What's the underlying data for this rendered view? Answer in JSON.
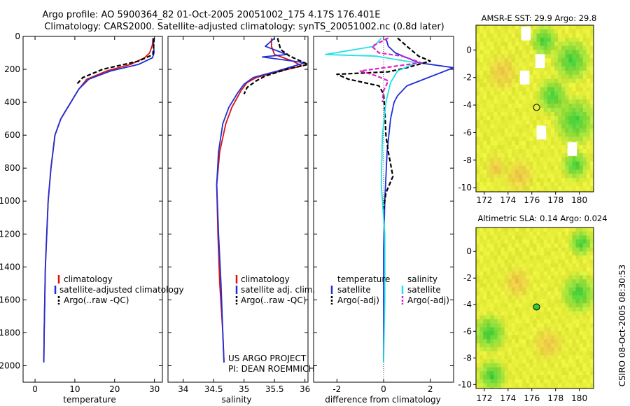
{
  "colors": {
    "climatology": "#dd1111",
    "satellite": "#1f2fd6",
    "argo": "#000000",
    "sat_salinity": "#22e0e8",
    "argo_salinity": "#dd22cc",
    "map_green": "#2ecb3a",
    "map_yellow": "#e6ee3a",
    "map_orange": "#f0c24a"
  },
  "header": {
    "title_line1": "Argo profile: AO 5900364_82 01-Oct-2005 20051002_175 4.17S 176.401E",
    "title_line2": "Climatology: CARS2000. Satellite-adjusted climatology: synTS_20051002.nc (0.8d later)"
  },
  "side_label": "CSIRO 08-Oct-2005 08:30:53",
  "credit": {
    "line1": "US ARGO PROJECT",
    "line2": "PI: DEAN ROEMMICH"
  },
  "chart_data": [
    {
      "type": "line",
      "name": "temperature-profile",
      "xlabel": "temperature",
      "ylabel": "",
      "y_reversed": true,
      "xlim": [
        -3,
        32
      ],
      "ylim": [
        0,
        2100
      ],
      "xticks": [
        0,
        10,
        20,
        30
      ],
      "yticks": [
        0,
        200,
        400,
        600,
        800,
        1000,
        1200,
        1400,
        1600,
        1800,
        2000
      ],
      "legend": [
        "climatology",
        "satellite-adjusted climatology",
        "Argo(..raw -QC)"
      ],
      "series": [
        {
          "name": "climatology",
          "color_key": "climatology",
          "x": [
            29.6,
            29.5,
            28.8,
            27.5,
            24,
            18,
            13,
            11,
            9,
            6.5,
            5,
            4,
            3.3,
            2.6,
            2.3,
            2.2
          ],
          "y": [
            10,
            50,
            100,
            130,
            170,
            210,
            260,
            320,
            400,
            500,
            600,
            800,
            1000,
            1400,
            1800,
            1980
          ]
        },
        {
          "name": "satellite",
          "color_key": "satellite",
          "x": [
            29.7,
            29.8,
            29.9,
            29.5,
            26,
            19,
            13.5,
            11,
            9,
            6.5,
            5,
            4,
            3.3,
            2.6,
            2.3,
            2.2
          ],
          "y": [
            10,
            50,
            100,
            130,
            170,
            210,
            260,
            320,
            400,
            500,
            600,
            800,
            1000,
            1400,
            1800,
            1980
          ]
        },
        {
          "name": "Argo",
          "color_key": "argo",
          "x": [
            29.9,
            29.8,
            29.6,
            26,
            17,
            12,
            10.5
          ],
          "y": [
            10,
            60,
            110,
            150,
            200,
            250,
            290
          ]
        }
      ]
    },
    {
      "type": "line",
      "name": "salinity-profile",
      "xlabel": "salinity",
      "ylabel": "",
      "y_reversed": true,
      "xlim": [
        33.75,
        36.05
      ],
      "ylim": [
        0,
        2100
      ],
      "xticks": [
        34,
        34.5,
        35,
        35.5,
        36
      ],
      "xticklabels": [
        "34",
        "34.5",
        "35",
        "35.5",
        "36"
      ],
      "legend": [
        "climatology",
        "satellite adj. clim.",
        "Argo(..raw -QC)"
      ],
      "series": [
        {
          "name": "climatology",
          "color_key": "climatology",
          "x": [
            35.45,
            35.45,
            35.5,
            35.8,
            35.95,
            35.6,
            35.2,
            35.05,
            34.95,
            34.8,
            34.7,
            34.6,
            34.55,
            34.57,
            34.6,
            34.65,
            34.67
          ],
          "y": [
            10,
            60,
            110,
            150,
            180,
            210,
            250,
            280,
            330,
            430,
            530,
            700,
            900,
            1200,
            1500,
            1800,
            1980
          ]
        },
        {
          "name": "satellite",
          "color_key": "satellite",
          "x": [
            35.5,
            35.35,
            35.7,
            35.3,
            36,
            35.55,
            35.15,
            35.0,
            34.9,
            34.75,
            34.65,
            34.58,
            34.55,
            34.58,
            34.62,
            34.65,
            34.67
          ],
          "y": [
            10,
            60,
            110,
            125,
            160,
            210,
            250,
            290,
            340,
            430,
            530,
            700,
            900,
            1200,
            1500,
            1800,
            1980
          ]
        },
        {
          "name": "Argo",
          "color_key": "argo",
          "x": [
            35.55,
            35.6,
            35.75,
            36.05,
            35.7,
            35.35,
            35.2,
            35.05,
            35.0
          ],
          "y": [
            10,
            80,
            120,
            170,
            200,
            240,
            270,
            310,
            350
          ]
        }
      ]
    },
    {
      "type": "line",
      "name": "difference-profile",
      "xlabel": "difference from climatology",
      "ylabel": "",
      "y_reversed": true,
      "xlim": [
        -3,
        3
      ],
      "ylim": [
        0,
        2100
      ],
      "xticks": [
        -2,
        0,
        2
      ],
      "legend": [
        "temperature",
        "satellite",
        "Argo(-adj)",
        "salinity",
        "satellite",
        "Argo(-adj)"
      ],
      "series": [
        {
          "name": "temperature satellite",
          "color_key": "satellite",
          "x": [
            0.1,
            0.2,
            0.5,
            1.0,
            1.5,
            2.5,
            3.0,
            1.0,
            0.6,
            0.45,
            0.3,
            0.15,
            0.05,
            0.0,
            0.0,
            0.0,
            0.0
          ],
          "y": [
            10,
            60,
            100,
            130,
            160,
            180,
            190,
            300,
            360,
            400,
            500,
            700,
            1000,
            1300,
            1600,
            1800,
            1980
          ]
        },
        {
          "name": "temperature Argo",
          "color_key": "argo",
          "x": [
            0.6,
            1.0,
            1.5,
            2.0,
            1.0,
            0.2,
            -2.0,
            -1.5,
            -0.2,
            0.0,
            0.05,
            0.1,
            0.2,
            0.4,
            0.1,
            0.0
          ],
          "y": [
            10,
            60,
            120,
            150,
            190,
            215,
            230,
            260,
            300,
            350,
            450,
            600,
            700,
            850,
            950,
            1050
          ]
        },
        {
          "name": "salinity satellite",
          "color_key": "sat_salinity",
          "x": [
            -0.1,
            -0.4,
            -2.5,
            -0.3,
            0.5,
            1.4,
            0.6,
            0.3,
            0.1,
            -0.05,
            -0.1,
            0.05,
            0.05,
            0.0
          ],
          "y": [
            10,
            60,
            110,
            120,
            140,
            160,
            210,
            280,
            400,
            600,
            900,
            1200,
            1600,
            1980
          ]
        },
        {
          "name": "salinity Argo",
          "color_key": "argo_salinity",
          "x": [
            0.2,
            -0.5,
            -0.2,
            0.8,
            1.6,
            0.3,
            -1.0,
            -0.3,
            0.2,
            0.0,
            -0.05
          ],
          "y": [
            10,
            60,
            100,
            120,
            160,
            185,
            210,
            240,
            270,
            330,
            400
          ]
        }
      ]
    },
    {
      "type": "heatmap",
      "name": "sst-map",
      "title": "AMSR-E SST: 29.9 Argo: 29.8",
      "xlim": [
        171.3,
        181.2
      ],
      "ylim": [
        -10.3,
        1.8
      ],
      "xticks": [
        172,
        174,
        176,
        178,
        180
      ],
      "yticks": [
        0,
        -2,
        -4,
        -6,
        -8,
        -10
      ],
      "marker": {
        "lon": 176.4,
        "lat": -4.17
      },
      "blobs": [
        {
          "lon": 176.9,
          "lat": 0.8,
          "r": 1.3,
          "color_key": "map_green"
        },
        {
          "lon": 179.2,
          "lat": -0.6,
          "r": 1.8,
          "color_key": "map_green"
        },
        {
          "lon": 179.5,
          "lat": -5.0,
          "r": 2.0,
          "color_key": "map_green"
        },
        {
          "lon": 177.6,
          "lat": -3.2,
          "r": 1.5,
          "color_key": "map_green"
        },
        {
          "lon": 179.5,
          "lat": -8.2,
          "r": 1.3,
          "color_key": "map_green"
        },
        {
          "lon": 173.4,
          "lat": -1.5,
          "r": 1.5,
          "color_key": "map_orange"
        },
        {
          "lon": 174.8,
          "lat": -9.0,
          "r": 1.4,
          "color_key": "map_orange"
        },
        {
          "lon": 172.8,
          "lat": -8.4,
          "r": 1.0,
          "color_key": "map_orange"
        }
      ],
      "land_patches": [
        {
          "lon": 175.5,
          "lat": 1.2
        },
        {
          "lon": 176.7,
          "lat": -0.8
        },
        {
          "lon": 175.4,
          "lat": -2.0
        },
        {
          "lon": 176.8,
          "lat": -6.0
        },
        {
          "lon": 179.4,
          "lat": -7.2
        }
      ]
    },
    {
      "type": "heatmap",
      "name": "sla-map",
      "title": "Altimetric SLA: 0.14 Argo: 0.024",
      "xlim": [
        171.3,
        181.2
      ],
      "ylim": [
        -10.3,
        1.8
      ],
      "xticks": [
        172,
        174,
        176,
        178,
        180
      ],
      "yticks": [
        0,
        -2,
        -4,
        -6,
        -8,
        -10
      ],
      "marker": {
        "lon": 176.4,
        "lat": -4.17
      },
      "blobs": [
        {
          "lon": 172.3,
          "lat": -6.0,
          "r": 1.6,
          "color_key": "map_green"
        },
        {
          "lon": 172.5,
          "lat": -9.2,
          "r": 1.4,
          "color_key": "map_green"
        },
        {
          "lon": 179.8,
          "lat": -3.0,
          "r": 1.7,
          "color_key": "map_green"
        },
        {
          "lon": 180.0,
          "lat": 0.8,
          "r": 1.2,
          "color_key": "map_green"
        },
        {
          "lon": 174.6,
          "lat": -2.2,
          "r": 1.4,
          "color_key": "map_orange"
        },
        {
          "lon": 177.2,
          "lat": -6.8,
          "r": 1.5,
          "color_key": "map_orange"
        }
      ]
    }
  ]
}
